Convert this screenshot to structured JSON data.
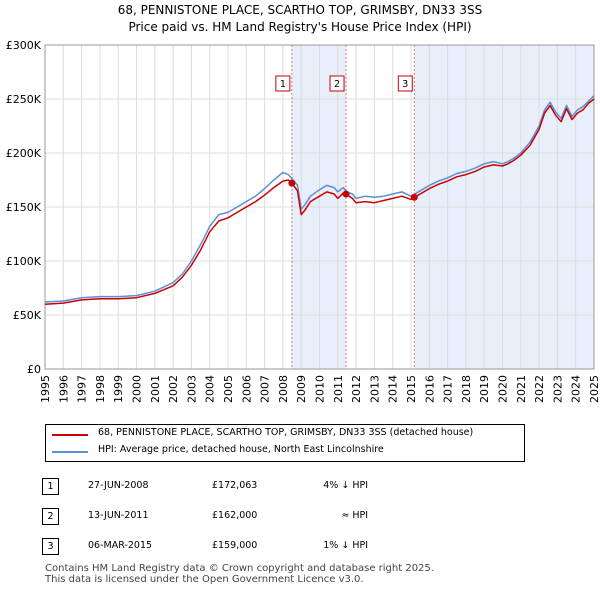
{
  "title_line1": "68, PENNISTONE PLACE, SCARTHO TOP, GRIMSBY, DN33 3SS",
  "title_line2": "Price paid vs. HM Land Registry's House Price Index (HPI)",
  "colors": {
    "property": "#cc0000",
    "hpi": "#5b8fd6",
    "shade": "#e8eefa",
    "grid": "#dddddd",
    "vline": "#dd7777"
  },
  "legend": [
    {
      "label": "68, PENNISTONE PLACE, SCARTHO TOP, GRIMSBY, DN33 3SS (detached house)",
      "color": "#cc0000"
    },
    {
      "label": "HPI: Average price, detached house, North East Lincolnshire",
      "color": "#5b8fd6"
    }
  ],
  "transactions": [
    {
      "num": "1",
      "date": "27-JUN-2008",
      "price": "£172,063",
      "hpi": "4% ↓ HPI"
    },
    {
      "num": "2",
      "date": "13-JUN-2011",
      "price": "£162,000",
      "hpi": "≈ HPI"
    },
    {
      "num": "3",
      "date": "06-MAR-2015",
      "price": "£159,000",
      "hpi": "1% ↓ HPI"
    }
  ],
  "footer_line1": "Contains HM Land Registry data © Crown copyright and database right 2025.",
  "footer_line2": "This data is licensed under the Open Government Licence v3.0.",
  "chart_data": {
    "type": "line",
    "title": "Price paid vs. HM Land Registry's House Price Index (HPI)",
    "xlim": [
      1995.0,
      2025.0
    ],
    "ylim": [
      0,
      300000
    ],
    "x_ticks": [
      1995,
      1996,
      1997,
      1998,
      1999,
      2000,
      2001,
      2002,
      2003,
      2004,
      2005,
      2006,
      2007,
      2008,
      2009,
      2010,
      2011,
      2012,
      2013,
      2014,
      2015,
      2016,
      2017,
      2018,
      2019,
      2020,
      2021,
      2022,
      2023,
      2024,
      2025
    ],
    "y_ticks": [
      0,
      50000,
      100000,
      150000,
      200000,
      250000,
      300000
    ],
    "y_tick_labels": [
      "£0",
      "£50K",
      "£100K",
      "£150K",
      "£200K",
      "£250K",
      "£300K"
    ],
    "shaded_ranges": [
      [
        2008.49,
        2011.45
      ],
      [
        2015.18,
        2025.0
      ]
    ],
    "sale_markers": [
      {
        "label": "1",
        "x": 2008.49,
        "y": 172063
      },
      {
        "label": "2",
        "x": 2011.45,
        "y": 162000
      },
      {
        "label": "3",
        "x": 2015.18,
        "y": 159000
      }
    ],
    "series": [
      {
        "name": "HPI: Average price, detached house, North East Lincolnshire",
        "x": [
          1995.0,
          1996.0,
          1997.0,
          1998.0,
          1999.0,
          2000.0,
          2001.0,
          2002.0,
          2002.5,
          2003.0,
          2003.5,
          2004.0,
          2004.5,
          2005.0,
          2005.5,
          2006.0,
          2006.5,
          2007.0,
          2007.5,
          2008.0,
          2008.3,
          2008.5,
          2008.8,
          2009.0,
          2009.2,
          2009.5,
          2010.0,
          2010.4,
          2010.8,
          2011.0,
          2011.3,
          2011.5,
          2011.8,
          2012.0,
          2012.5,
          2013.0,
          2013.5,
          2014.0,
          2014.5,
          2015.0,
          2015.5,
          2016.0,
          2016.5,
          2017.0,
          2017.5,
          2018.0,
          2018.5,
          2019.0,
          2019.5,
          2020.0,
          2020.3,
          2020.6,
          2021.0,
          2021.5,
          2022.0,
          2022.3,
          2022.6,
          2022.9,
          2023.2,
          2023.5,
          2023.8,
          2024.1,
          2024.4,
          2024.7,
          2025.0
        ],
        "y": [
          62000,
          63000,
          66000,
          67000,
          67000,
          68000,
          72000,
          80000,
          88000,
          100000,
          115000,
          132000,
          143000,
          145000,
          150000,
          155000,
          160000,
          167000,
          175000,
          182000,
          180000,
          176000,
          170000,
          148000,
          152000,
          160000,
          166000,
          170000,
          168000,
          164000,
          168000,
          164000,
          162000,
          158000,
          160000,
          159000,
          160000,
          162000,
          164000,
          160000,
          165000,
          170000,
          174000,
          177000,
          181000,
          183000,
          186000,
          190000,
          192000,
          190000,
          192000,
          195000,
          200000,
          210000,
          225000,
          240000,
          247000,
          238000,
          232000,
          244000,
          234000,
          240000,
          243000,
          248000,
          253000
        ]
      },
      {
        "name": "68, PENNISTONE PLACE, SCARTHO TOP, GRIMSBY, DN33 3SS (detached house)",
        "x": [
          1995.0,
          1996.0,
          1997.0,
          1998.0,
          1999.0,
          2000.0,
          2001.0,
          2002.0,
          2002.5,
          2003.0,
          2003.5,
          2004.0,
          2004.5,
          2005.0,
          2005.5,
          2006.0,
          2006.5,
          2007.0,
          2007.5,
          2008.0,
          2008.3,
          2008.49,
          2008.8,
          2009.0,
          2009.2,
          2009.5,
          2010.0,
          2010.4,
          2010.8,
          2011.0,
          2011.3,
          2011.45,
          2011.8,
          2012.0,
          2012.5,
          2013.0,
          2013.5,
          2014.0,
          2014.5,
          2015.0,
          2015.18,
          2015.5,
          2016.0,
          2016.5,
          2017.0,
          2017.5,
          2018.0,
          2018.5,
          2019.0,
          2019.5,
          2020.0,
          2020.3,
          2020.6,
          2021.0,
          2021.5,
          2022.0,
          2022.3,
          2022.6,
          2022.9,
          2023.2,
          2023.5,
          2023.8,
          2024.1,
          2024.4,
          2024.7,
          2025.0
        ],
        "y": [
          60000,
          61000,
          64000,
          65000,
          65000,
          66000,
          70000,
          77000,
          85000,
          96000,
          110000,
          127000,
          137000,
          140000,
          145000,
          150000,
          155000,
          161000,
          168000,
          174000,
          175000,
          172063,
          165000,
          143000,
          147000,
          155000,
          160000,
          164000,
          162000,
          158000,
          163000,
          162000,
          158000,
          154000,
          155000,
          154000,
          156000,
          158000,
          160000,
          157000,
          159000,
          162000,
          167000,
          171000,
          174000,
          178000,
          180000,
          183000,
          187000,
          189000,
          188000,
          190000,
          193000,
          198000,
          207000,
          222000,
          237000,
          244000,
          235000,
          229000,
          241000,
          231000,
          237000,
          240000,
          246000,
          250000
        ]
      }
    ]
  }
}
